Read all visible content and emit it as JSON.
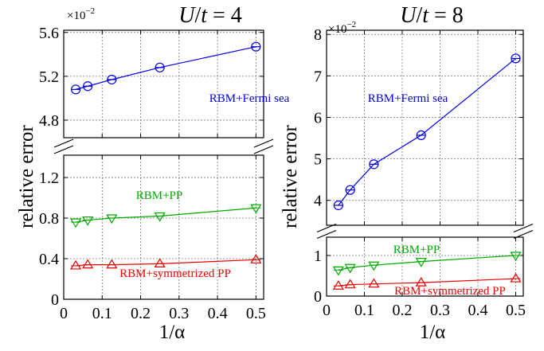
{
  "chart_data": [
    {
      "type": "line",
      "title": "U/t = 4",
      "title_parts": [
        "U",
        "/",
        "t",
        " = 4"
      ],
      "xlabel": "1/α",
      "ylabel": "relative error",
      "x_ticks": [
        "0",
        "0.1",
        "0.2",
        "0.3",
        "0.4",
        "0.5"
      ],
      "xlim": [
        0,
        0.52
      ],
      "grid": true,
      "upper_panel": {
        "multiplier": "×10",
        "multiplier_exp": "−2",
        "ylim": [
          4.64,
          5.62
        ],
        "y_ticks": [
          "4.8",
          "5.2",
          "5.6"
        ],
        "y_tick_values": [
          4.8,
          5.2,
          5.6
        ]
      },
      "lower_panel": {
        "ylim": [
          0,
          1.42
        ],
        "y_ticks": [
          "0",
          "0.4",
          "0.8",
          "1.2"
        ],
        "y_tick_values": [
          0,
          0.4,
          0.8,
          1.2
        ]
      },
      "series": [
        {
          "name": "RBM+Fermi sea",
          "panel": "upper",
          "marker": "circle",
          "color": "#0000ee",
          "x": [
            0.03125,
            0.0625,
            0.125,
            0.25,
            0.5
          ],
          "y": [
            5.08,
            5.11,
            5.17,
            5.28,
            5.47
          ]
        },
        {
          "name": "RBM+PP",
          "panel": "lower",
          "marker": "triangle-down",
          "color": "#00aa00",
          "x": [
            0.03125,
            0.0625,
            0.125,
            0.25,
            0.5
          ],
          "y": [
            0.76,
            0.78,
            0.8,
            0.82,
            0.9
          ]
        },
        {
          "name": "RBM+symmetrized PP",
          "panel": "lower",
          "marker": "triangle-up",
          "color": "#ee0000",
          "x": [
            0.03125,
            0.0625,
            0.125,
            0.25,
            0.5
          ],
          "y": [
            0.33,
            0.34,
            0.34,
            0.35,
            0.39
          ]
        }
      ]
    },
    {
      "type": "line",
      "title": "U/t = 8",
      "title_parts": [
        "U",
        "/",
        "t",
        " = 8"
      ],
      "xlabel": "1/α",
      "ylabel": "relative error",
      "x_ticks": [
        "0",
        "0.1",
        "0.2",
        "0.3",
        "0.4",
        "0.5"
      ],
      "xlim": [
        0,
        0.52
      ],
      "grid": true,
      "upper_panel": {
        "multiplier": "×10",
        "multiplier_exp": "−2",
        "ylim": [
          3.4,
          8.1
        ],
        "y_ticks": [
          "4",
          "5",
          "6",
          "7",
          "8"
        ],
        "y_tick_values": [
          4,
          5,
          6,
          7,
          8
        ]
      },
      "lower_panel": {
        "ylim": [
          0,
          1.45
        ],
        "y_ticks": [
          "0",
          "1"
        ],
        "y_tick_values": [
          0,
          1
        ]
      },
      "series": [
        {
          "name": "RBM+Fermi sea",
          "panel": "upper",
          "marker": "circle",
          "color": "#0000ee",
          "x": [
            0.03125,
            0.0625,
            0.125,
            0.25,
            0.5
          ],
          "y": [
            3.88,
            4.25,
            4.87,
            5.57,
            7.42
          ]
        },
        {
          "name": "RBM+PP",
          "panel": "lower",
          "marker": "triangle-down",
          "color": "#00aa00",
          "x": [
            0.03125,
            0.0625,
            0.125,
            0.25,
            0.5
          ],
          "y": [
            0.64,
            0.7,
            0.76,
            0.85,
            1.0
          ]
        },
        {
          "name": "RBM+symmetrized PP",
          "panel": "lower",
          "marker": "triangle-up",
          "color": "#ee0000",
          "x": [
            0.03125,
            0.0625,
            0.125,
            0.25,
            0.5
          ],
          "y": [
            0.25,
            0.28,
            0.3,
            0.33,
            0.43
          ]
        }
      ]
    }
  ]
}
